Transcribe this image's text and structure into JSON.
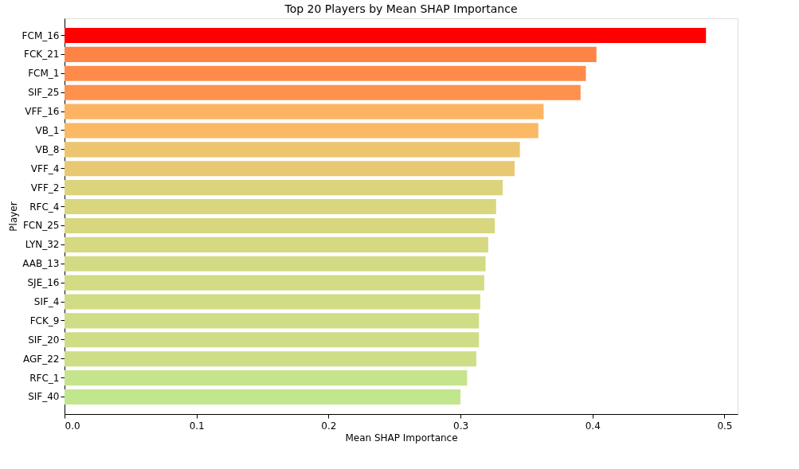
{
  "chart_data": {
    "type": "bar",
    "orientation": "horizontal",
    "title": "Top 20 Players by Mean SHAP Importance",
    "xlabel": "Mean SHAP Importance",
    "ylabel": "Player",
    "categories": [
      "FCM_16",
      "FCK_21",
      "FCM_1",
      "SIF_25",
      "VFF_16",
      "VB_1",
      "VB_8",
      "VFF_4",
      "VFF_2",
      "RFC_4",
      "FCN_25",
      "LYN_32",
      "AAB_13",
      "SJE_16",
      "SIF_4",
      "FCK_9",
      "SIF_20",
      "AGF_22",
      "RFC_1",
      "SIF_40"
    ],
    "values": [
      0.486,
      0.403,
      0.395,
      0.391,
      0.363,
      0.359,
      0.345,
      0.341,
      0.332,
      0.327,
      0.326,
      0.321,
      0.319,
      0.318,
      0.315,
      0.314,
      0.314,
      0.312,
      0.305,
      0.3
    ],
    "colors": [
      "#ff0000",
      "#fe8445",
      "#fe8b4a",
      "#fe914e",
      "#fdb462",
      "#fbb865",
      "#ecc56e",
      "#e8c872",
      "#dcd47c",
      "#d9d67e",
      "#d8d67f",
      "#d6d882",
      "#d4da83",
      "#d3db84",
      "#d1dc85",
      "#cfdd86",
      "#cfdd86",
      "#cdde87",
      "#c6e48c",
      "#c1e68e"
    ],
    "xlim": [
      0,
      0.51
    ],
    "xticks": [
      {
        "value": 0,
        "label": "0.0"
      },
      {
        "value": 0.1,
        "label": "0.1"
      },
      {
        "value": 0.2,
        "label": "0.2"
      },
      {
        "value": 0.3,
        "label": "0.3"
      },
      {
        "value": 0.4,
        "label": "0.4"
      },
      {
        "value": 0.5,
        "label": "0.5"
      }
    ],
    "grid": false
  }
}
